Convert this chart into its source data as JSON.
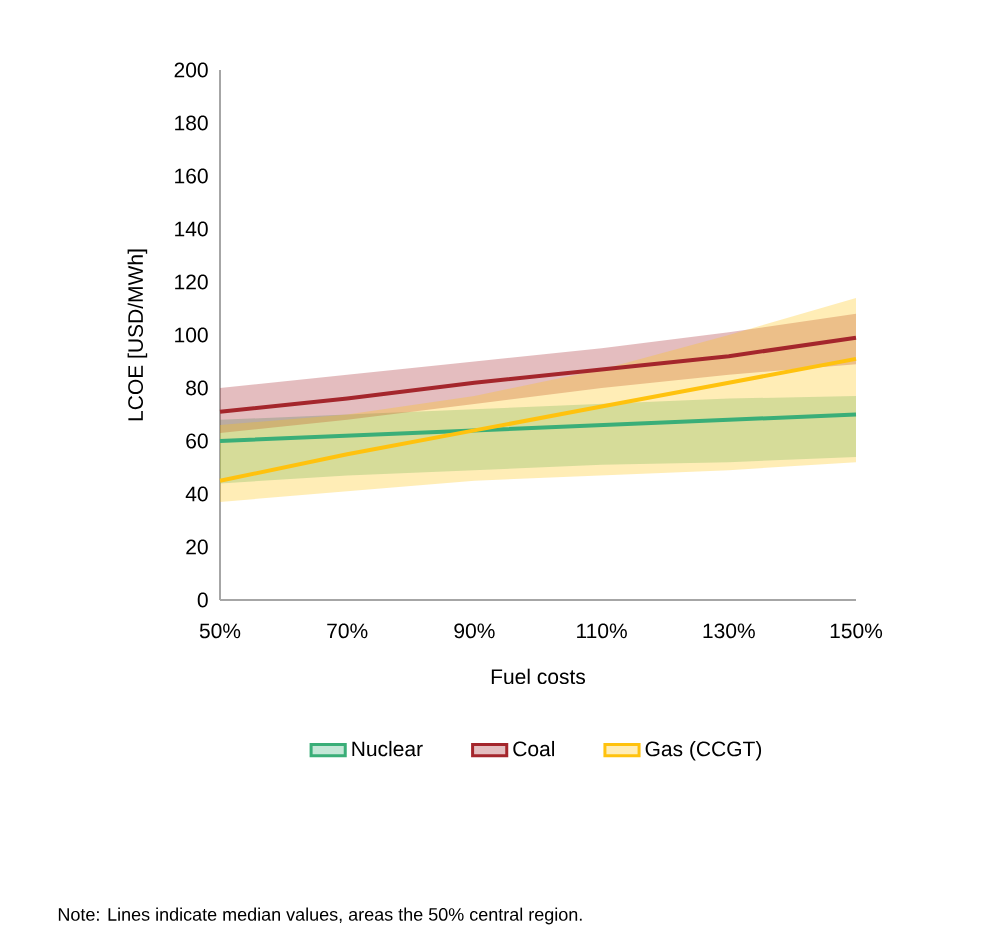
{
  "chart_data": {
    "type": "line",
    "xlabel": "Fuel costs",
    "ylabel": "LCOE [USD/MWh]",
    "x": [
      50,
      70,
      90,
      110,
      130,
      150
    ],
    "xlim": [
      50,
      150
    ],
    "xticks": [
      {
        "value": 50,
        "label": "50%"
      },
      {
        "value": 70,
        "label": "70%"
      },
      {
        "value": 90,
        "label": "90%"
      },
      {
        "value": 110,
        "label": "110%"
      },
      {
        "value": 130,
        "label": "130%"
      },
      {
        "value": 150,
        "label": "150%"
      }
    ],
    "ylim": [
      0,
      200
    ],
    "yticks": [
      0,
      20,
      40,
      60,
      80,
      100,
      120,
      140,
      160,
      180,
      200
    ],
    "grid": false,
    "legend": "bottom",
    "series": [
      {
        "name": "Nuclear",
        "color": "#3aae78",
        "values": [
          60,
          62,
          64,
          66,
          68,
          70
        ],
        "lower": [
          44,
          47,
          49,
          51,
          52,
          54
        ],
        "upper": [
          68,
          70,
          72,
          74,
          76,
          77
        ]
      },
      {
        "name": "Coal",
        "color": "#a4262c",
        "values": [
          71,
          76,
          82,
          87,
          92,
          99
        ],
        "lower": [
          63,
          68,
          74,
          80,
          85,
          89
        ],
        "upper": [
          80,
          85,
          90,
          95,
          101,
          108
        ]
      },
      {
        "name": "Gas (CCGT)",
        "color": "#ffc20e",
        "values": [
          45,
          55,
          64,
          73,
          82,
          91
        ],
        "lower": [
          37,
          41,
          45,
          47,
          49,
          52
        ],
        "upper": [
          66,
          70,
          77,
          87,
          100,
          114
        ]
      }
    ],
    "annotations": [
      "Note: Lines indicate median values, areas the 50% central region."
    ]
  }
}
